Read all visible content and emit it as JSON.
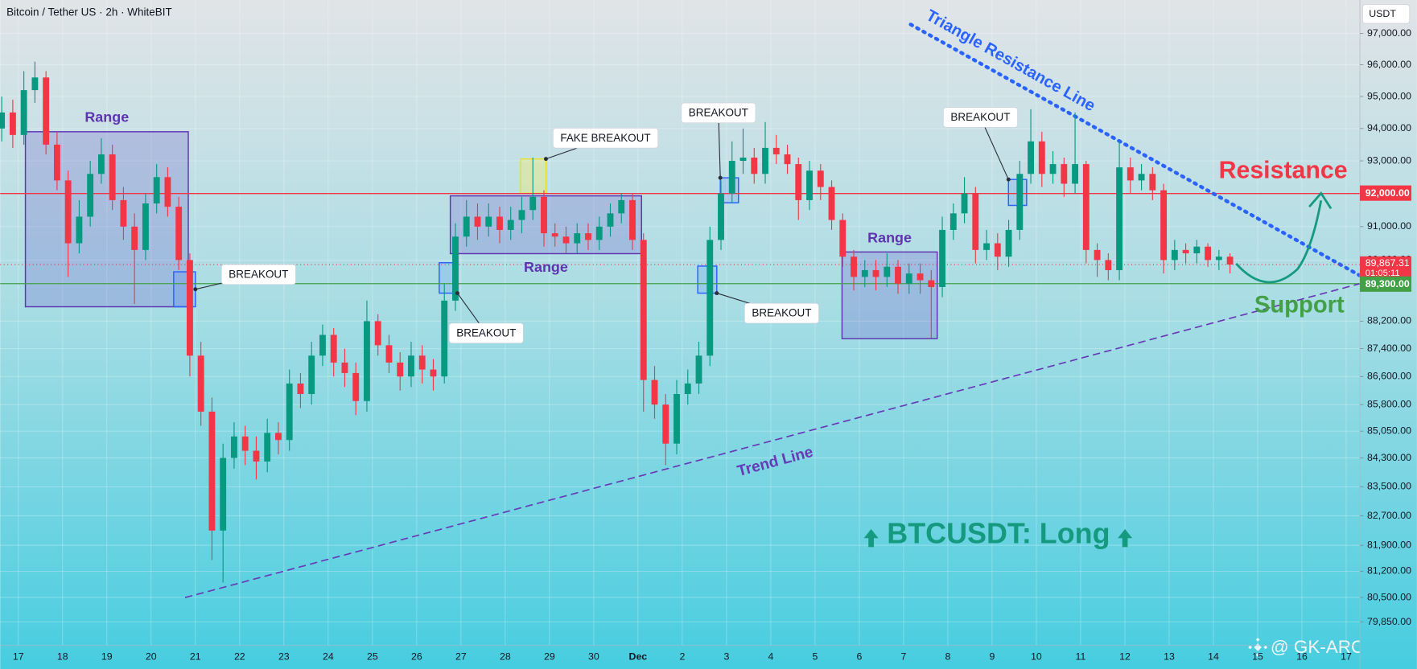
{
  "chart_data": {
    "type": "candlestick",
    "title": "Bitcoin / Tether US · 2h · WhiteBIT",
    "currency": "USDT",
    "log_scale": true,
    "grid": true,
    "up_color": "#089981",
    "down_color": "#f23645",
    "x": [
      -0.375,
      -0.125,
      0.125,
      0.375,
      0.625,
      0.875,
      1.125,
      1.375,
      1.625,
      1.875,
      2.125,
      2.375,
      2.625,
      2.875,
      3.125,
      3.375,
      3.625,
      3.875,
      4.125,
      4.375,
      4.625,
      4.875,
      5.125,
      5.375,
      5.625,
      5.875,
      6.125,
      6.375,
      6.625,
      6.875,
      7.125,
      7.375,
      7.625,
      7.875,
      8.125,
      8.375,
      8.625,
      8.875,
      9.125,
      9.375,
      9.625,
      9.875,
      10.125,
      10.375,
      10.625,
      10.875,
      11.125,
      11.375,
      11.625,
      11.875,
      12.125,
      12.375,
      12.625,
      12.875,
      13.125,
      13.375,
      13.625,
      13.875,
      14.125,
      14.375,
      14.625,
      14.875,
      15.125,
      15.375,
      15.625,
      15.875,
      16.125,
      16.375,
      16.625,
      16.875,
      17.125,
      17.375,
      17.625,
      17.875,
      18.125,
      18.375,
      18.625,
      18.875,
      19.125,
      19.375,
      19.625,
      19.875,
      20.125,
      20.375,
      20.625,
      20.875,
      21.125,
      21.375,
      21.625,
      21.875,
      22.125,
      22.375,
      22.625,
      22.875,
      23.125,
      23.375,
      23.625,
      23.875,
      24.125,
      24.375,
      24.625,
      24.875,
      25.125,
      25.375,
      25.625,
      25.875,
      26.125,
      26.375,
      26.625,
      26.875,
      27.125,
      27.375
    ],
    "open": [
      94000,
      94500,
      93800,
      95200,
      95600,
      93500,
      92400,
      90500,
      91300,
      92600,
      93200,
      91800,
      91000,
      90300,
      91700,
      92500,
      91600,
      90000,
      87200,
      85600,
      82300,
      84300,
      84900,
      84500,
      84200,
      85000,
      84800,
      86400,
      86100,
      87200,
      87800,
      87000,
      86700,
      85900,
      88200,
      87500,
      87000,
      86600,
      87200,
      86800,
      86600,
      88800,
      90700,
      91300,
      91000,
      91300,
      90900,
      91200,
      91500,
      91900,
      90800,
      90700,
      90500,
      90800,
      90600,
      91000,
      91400,
      91800,
      90600,
      86500,
      85800,
      84700,
      86100,
      86400,
      87200,
      90600,
      92000,
      93000,
      93100,
      92600,
      93400,
      93200,
      92900,
      91800,
      92700,
      92200,
      91200,
      90100,
      89500,
      89700,
      89500,
      89800,
      89300,
      89600,
      89400,
      89200,
      90900,
      91400,
      92000,
      90300,
      90500,
      90100,
      90900,
      92600,
      93600,
      92600,
      92900,
      92300,
      92900,
      90300,
      90000,
      89700,
      92800,
      92400,
      92600,
      92100,
      90000,
      90300,
      90200,
      90400,
      90000,
      90100
    ],
    "high": [
      95000,
      94900,
      95800,
      96100,
      95800,
      93900,
      92700,
      91800,
      93000,
      93700,
      93500,
      92200,
      91400,
      92000,
      92900,
      92800,
      91900,
      90200,
      87600,
      86000,
      84700,
      85300,
      85200,
      84900,
      85400,
      85300,
      86800,
      86700,
      87600,
      88100,
      88000,
      87400,
      87000,
      88800,
      88400,
      87800,
      87300,
      87600,
      87500,
      87100,
      89300,
      91100,
      91800,
      91700,
      91700,
      91600,
      91600,
      91900,
      93100,
      92100,
      91100,
      91000,
      91100,
      91100,
      91300,
      91700,
      92000,
      92000,
      90800,
      86900,
      86100,
      86500,
      86800,
      87600,
      91000,
      92400,
      93600,
      94000,
      93400,
      94200,
      93800,
      93500,
      93100,
      93000,
      92900,
      92400,
      91400,
      90300,
      90000,
      90000,
      90200,
      90000,
      89900,
      89900,
      89700,
      91300,
      91700,
      92500,
      92200,
      90900,
      90800,
      91200,
      93000,
      94600,
      93900,
      93300,
      93100,
      94500,
      93000,
      90500,
      90200,
      93600,
      93100,
      92900,
      92800,
      92300,
      90600,
      90500,
      90600,
      90500,
      90300,
      90200
    ],
    "low": [
      93600,
      93400,
      93500,
      94800,
      93200,
      92100,
      89500,
      90200,
      91000,
      92300,
      91500,
      90600,
      88700,
      90000,
      91400,
      91300,
      89700,
      86600,
      85200,
      81500,
      80900,
      84000,
      84100,
      83700,
      83900,
      84400,
      84500,
      85700,
      85800,
      86900,
      86600,
      86300,
      85500,
      85600,
      87200,
      86700,
      86200,
      86300,
      86400,
      86200,
      86400,
      88500,
      90400,
      90600,
      90700,
      90500,
      90600,
      90800,
      91200,
      90400,
      90400,
      90200,
      90200,
      90300,
      90300,
      90700,
      91100,
      90300,
      85600,
      85400,
      84100,
      84400,
      85800,
      86100,
      86900,
      90300,
      91700,
      92600,
      92300,
      92300,
      92900,
      92600,
      91200,
      91500,
      91800,
      90900,
      89800,
      89100,
      89200,
      89100,
      89200,
      89000,
      89000,
      89000,
      87700,
      88900,
      90600,
      91100,
      89900,
      90000,
      89700,
      89800,
      90600,
      92300,
      92200,
      92300,
      91900,
      92000,
      89900,
      89500,
      89400,
      89400,
      92000,
      92100,
      91800,
      89600,
      89700,
      89900,
      89900,
      89800,
      89700,
      89600
    ],
    "close": [
      94500,
      93800,
      95200,
      95600,
      93500,
      92400,
      90500,
      91300,
      92600,
      93200,
      91800,
      91000,
      90300,
      91700,
      92500,
      91600,
      90000,
      87200,
      85600,
      82300,
      84300,
      84900,
      84500,
      84200,
      85000,
      84800,
      86400,
      86100,
      87200,
      87800,
      87000,
      86700,
      85900,
      88200,
      87500,
      87000,
      86600,
      87200,
      86800,
      86600,
      88800,
      90700,
      91300,
      91000,
      91300,
      90900,
      91200,
      91500,
      91900,
      90800,
      90700,
      90500,
      90800,
      90600,
      91000,
      91400,
      91800,
      90600,
      86500,
      85800,
      84700,
      86100,
      86400,
      87200,
      90600,
      92000,
      93000,
      93100,
      92600,
      93400,
      93200,
      92900,
      91800,
      92700,
      92200,
      91200,
      90100,
      89500,
      89700,
      89500,
      89800,
      89300,
      89600,
      89400,
      89200,
      90900,
      91400,
      92000,
      90300,
      90500,
      90100,
      90900,
      92600,
      93600,
      92600,
      92900,
      92300,
      92900,
      90300,
      90000,
      89700,
      92800,
      92400,
      92600,
      92100,
      90000,
      90300,
      90200,
      90400,
      90000,
      90100,
      89867.31
    ],
    "xlim": [
      -0.41,
      30.31
    ],
    "xticks": [
      {
        "value": 0,
        "label": "17"
      },
      {
        "value": 1,
        "label": "18"
      },
      {
        "value": 2,
        "label": "19"
      },
      {
        "value": 3,
        "label": "20"
      },
      {
        "value": 4,
        "label": "21"
      },
      {
        "value": 5,
        "label": "22"
      },
      {
        "value": 6,
        "label": "23"
      },
      {
        "value": 7,
        "label": "24"
      },
      {
        "value": 8,
        "label": "25"
      },
      {
        "value": 9,
        "label": "26"
      },
      {
        "value": 10,
        "label": "27"
      },
      {
        "value": 11,
        "label": "28"
      },
      {
        "value": 12,
        "label": "29"
      },
      {
        "value": 13,
        "label": "30"
      },
      {
        "value": 14,
        "label": "Dec"
      },
      {
        "value": 15,
        "label": "2"
      },
      {
        "value": 16,
        "label": "3"
      },
      {
        "value": 17,
        "label": "4"
      },
      {
        "value": 18,
        "label": "5"
      },
      {
        "value": 19,
        "label": "6"
      },
      {
        "value": 20,
        "label": "7"
      },
      {
        "value": 21,
        "label": "8"
      },
      {
        "value": 22,
        "label": "9"
      },
      {
        "value": 23,
        "label": "10"
      },
      {
        "value": 24,
        "label": "11"
      },
      {
        "value": 25,
        "label": "12"
      },
      {
        "value": 26,
        "label": "13"
      },
      {
        "value": 27,
        "label": "14"
      },
      {
        "value": 28,
        "label": "15"
      },
      {
        "value": 29,
        "label": "16"
      },
      {
        "value": 30,
        "label": "17"
      }
    ],
    "ylim": [
      79230,
      98080
    ],
    "yticks": [
      {
        "value": 97000,
        "label": "97,000.00"
      },
      {
        "value": 96000,
        "label": "96,000.00"
      },
      {
        "value": 95000,
        "label": "95,000.00"
      },
      {
        "value": 94000,
        "label": "94,000.00"
      },
      {
        "value": 93000,
        "label": "93,000.00"
      },
      {
        "value": 91000,
        "label": "91,000.00"
      },
      {
        "value": 90000,
        "label": "90,000.00"
      },
      {
        "value": 88200,
        "label": "88,200.00"
      },
      {
        "value": 87400,
        "label": "87,400.00"
      },
      {
        "value": 86600,
        "label": "86,600.00"
      },
      {
        "value": 85800,
        "label": "85,800.00"
      },
      {
        "value": 85050,
        "label": "85,050.00"
      },
      {
        "value": 84300,
        "label": "84,300.00"
      },
      {
        "value": 83500,
        "label": "83,500.00"
      },
      {
        "value": 82700,
        "label": "82,700.00"
      },
      {
        "value": 81900,
        "label": "81,900.00"
      },
      {
        "value": 81200,
        "label": "81,200.00"
      },
      {
        "value": 80500,
        "label": "80,500.00"
      },
      {
        "value": 79850,
        "label": "79,850.00"
      }
    ],
    "last_price": {
      "value": 89867.31,
      "label": "89,867.31",
      "countdown": "01:05:11",
      "color": "#f23645"
    },
    "levels": [
      {
        "name": "Resistance",
        "value": 92000,
        "label": "92,000.00",
        "color": "#f23645"
      },
      {
        "name": "Support",
        "value": 89300,
        "label": "89,300.00",
        "color": "#43a047"
      }
    ],
    "ranges": [
      {
        "label": "Range",
        "x": [
          0.16,
          3.84
        ],
        "y": [
          88620,
          93900
        ]
      },
      {
        "label": "Range",
        "x": [
          9.76,
          14.08
        ],
        "y": [
          90190,
          91930
        ]
      },
      {
        "label": "Range",
        "x": [
          18.61,
          20.76
        ],
        "y": [
          87690,
          90240
        ]
      }
    ],
    "breakouts": [
      {
        "label": "BREAKOUT",
        "x": [
          3.51,
          4.0
        ],
        "y": [
          88620,
          89650
        ]
      },
      {
        "label": "BREAKOUT",
        "x": [
          9.51,
          9.92
        ],
        "y": [
          89020,
          89920
        ]
      },
      {
        "label": "BREAKOUT",
        "x": [
          15.35,
          15.78
        ],
        "y": [
          89020,
          89820
        ]
      },
      {
        "label": "BREAKOUT",
        "x": [
          15.86,
          16.27
        ],
        "y": [
          91720,
          92480
        ]
      },
      {
        "label": "BREAKOUT",
        "x": [
          22.37,
          22.78
        ],
        "y": [
          91640,
          92430
        ]
      }
    ],
    "fake_breakout": {
      "label": "FAKE BREAKOUT",
      "x": [
        11.35,
        11.92
      ],
      "y": [
        92010,
        93060
      ]
    },
    "trend_line": {
      "label": "Trend Line",
      "x": [
        3.78,
        30.31
      ],
      "y": [
        80500,
        89300
      ],
      "color": "#673ab7"
    },
    "triangle_line": {
      "label": "Triangle Resistance Line",
      "x": [
        20.16,
        30.31
      ],
      "y": [
        97290,
        89540
      ],
      "color": "#2962ff"
    },
    "signal": "BTCUSDT: Long",
    "watermark": "@ GK-ARONNO"
  }
}
